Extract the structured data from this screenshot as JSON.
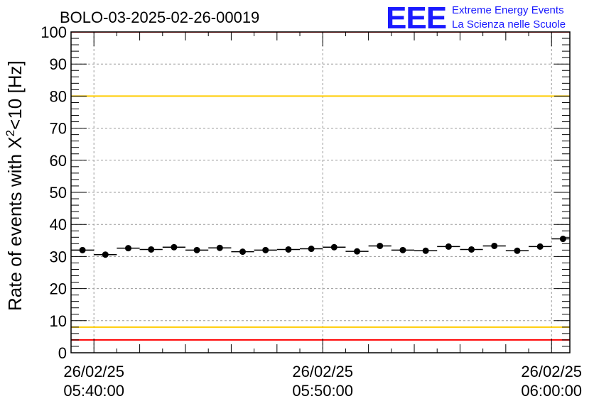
{
  "chart_data": {
    "type": "scatter",
    "title": "BOLO-03-2025-02-26-00019",
    "ylabel_parts": [
      "Rate of events with X",
      "2",
      "<10 [Hz]"
    ],
    "xlabel": "",
    "ylim": [
      0,
      100
    ],
    "y_major_ticks": [
      0,
      10,
      20,
      30,
      40,
      50,
      60,
      70,
      80,
      90,
      100
    ],
    "y_tick_labels": [
      "0",
      "10",
      "20",
      "30",
      "40",
      "50",
      "60",
      "70",
      "80",
      "90",
      "100"
    ],
    "xlim_minutes": [
      -1,
      20.8
    ],
    "x_tick_minutes": [
      0,
      10,
      20
    ],
    "x_tick_labels": [
      {
        "date": "26/02/25",
        "time": "05:40:00"
      },
      {
        "date": "26/02/25",
        "time": "05:50:00"
      },
      {
        "date": "26/02/25",
        "time": "06:00:00"
      }
    ],
    "bin_width_minutes": 1,
    "series": [
      {
        "name": "rate",
        "x_minutes": [
          -0.5,
          0.5,
          1.5,
          2.5,
          3.5,
          4.5,
          5.5,
          6.5,
          7.5,
          8.5,
          9.5,
          10.5,
          11.5,
          12.5,
          13.5,
          14.5,
          15.5,
          16.5,
          17.5,
          18.5,
          19.5,
          20.5
        ],
        "values": [
          32.0,
          30.6,
          32.6,
          32.2,
          32.9,
          32.0,
          32.7,
          31.5,
          32.0,
          32.2,
          32.4,
          32.9,
          31.6,
          33.3,
          32.0,
          31.8,
          33.1,
          32.2,
          33.3,
          31.8,
          33.1,
          35.5
        ]
      }
    ],
    "reference_lines": [
      {
        "name": "upper-red-limit",
        "y": 100,
        "color": "#ff0000"
      },
      {
        "name": "upper-yellow-limit",
        "y": 80,
        "color": "#ffcc00"
      },
      {
        "name": "lower-yellow-limit",
        "y": 8,
        "color": "#ffcc00"
      },
      {
        "name": "lower-red-limit",
        "y": 4,
        "color": "#ff0000"
      }
    ],
    "grid": true
  },
  "logo": {
    "text": "EEE",
    "line1": "Extreme Energy Events",
    "line2": "La Scienza nelle Scuole"
  },
  "colors": {
    "logo": "#1a1aff",
    "grid": "#9a9a9a",
    "marker": "#000000"
  }
}
